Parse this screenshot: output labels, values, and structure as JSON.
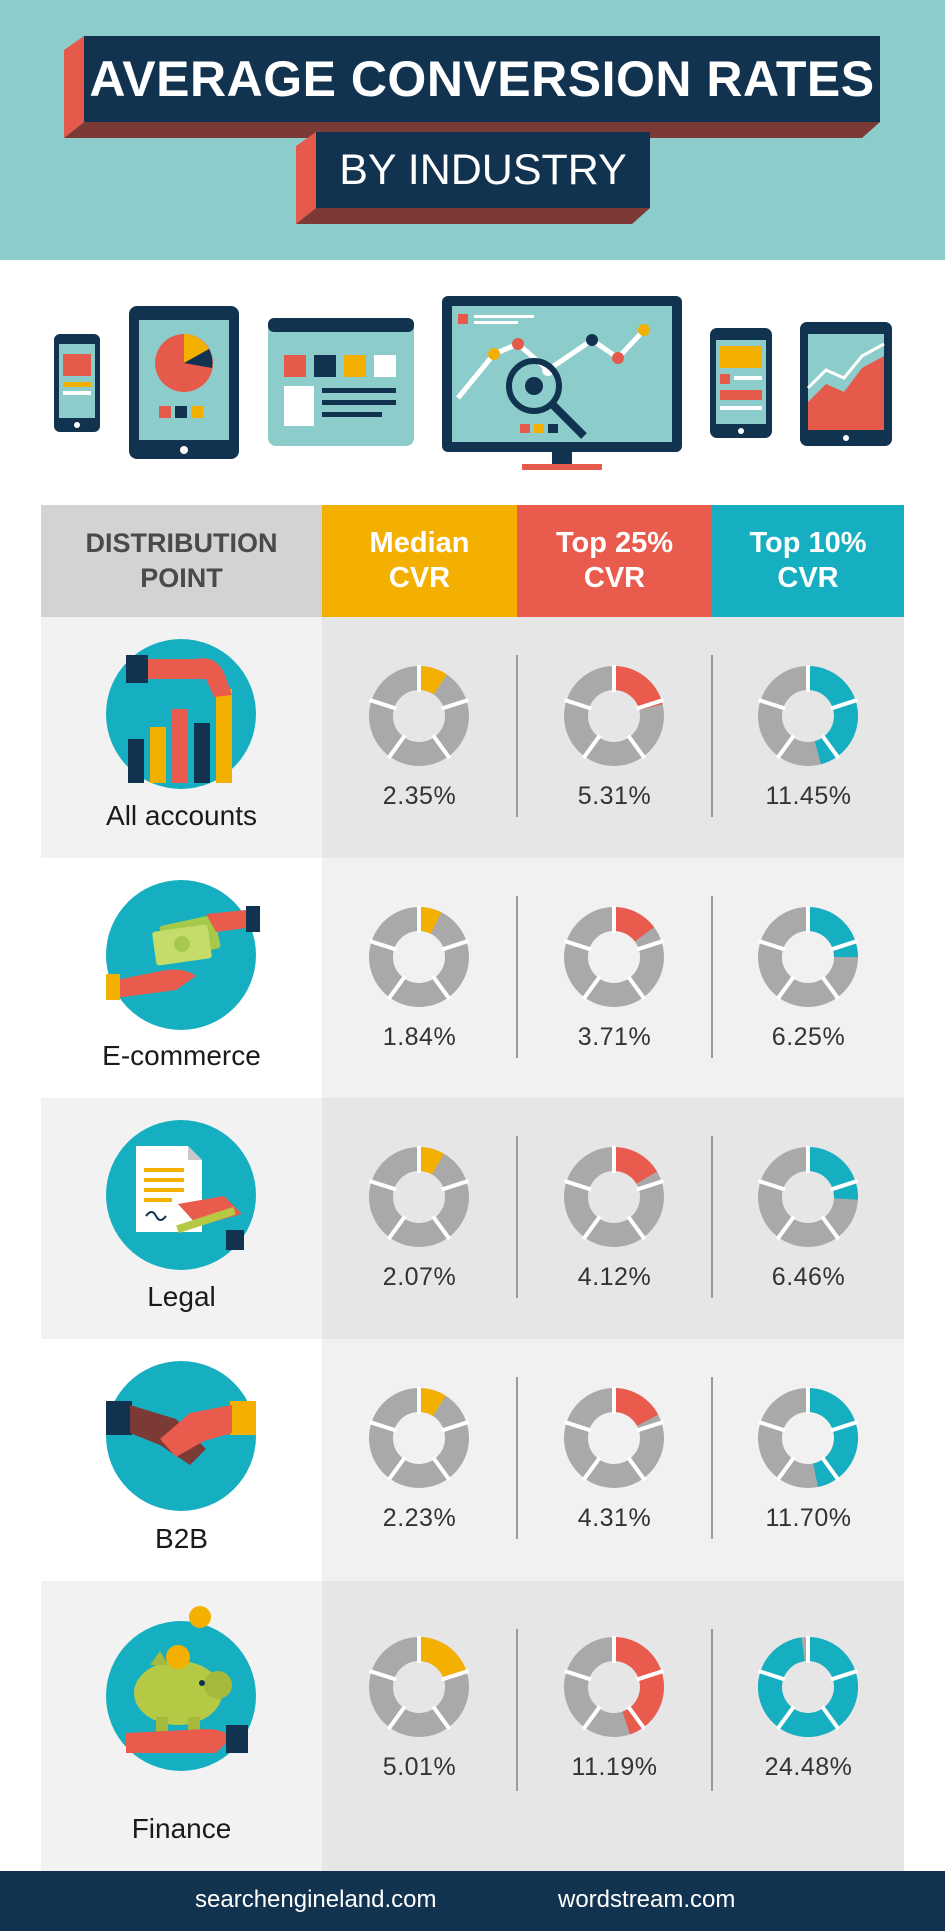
{
  "header": {
    "title": "AVERAGE CONVERSION RATES",
    "subtitle": "BY INDUSTRY"
  },
  "colors": {
    "median": "#f4b000",
    "top25": "#e95b4d",
    "top10": "#16afc1",
    "ring_gray": "#a9a9a9",
    "navy": "#12334f",
    "teal_bg": "#8ccdcc"
  },
  "chart_data": {
    "type": "table",
    "columns": [
      "DISTRIBUTION\nPOINT",
      "Median\nCVR",
      "Top 25%\nCVR",
      "Top 10%\nCVR"
    ],
    "rows": [
      {
        "label": "All accounts",
        "icon": "bar-chart-hand-icon",
        "median": 2.35,
        "top25": 5.31,
        "top10": 11.45,
        "median_text": "2.35%",
        "top25_text": "5.31%",
        "top10_text": "11.45%"
      },
      {
        "label": "E-commerce",
        "icon": "money-exchange-icon",
        "median": 1.84,
        "top25": 3.71,
        "top10": 6.25,
        "median_text": "1.84%",
        "top25_text": "3.71%",
        "top10_text": "6.25%"
      },
      {
        "label": "Legal",
        "icon": "document-signing-icon",
        "median": 2.07,
        "top25": 4.12,
        "top10": 6.46,
        "median_text": "2.07%",
        "top25_text": "4.12%",
        "top10_text": "6.46%"
      },
      {
        "label": "B2B",
        "icon": "handshake-icon",
        "median": 2.23,
        "top25": 4.31,
        "top10": 11.7,
        "median_text": "2.23%",
        "top25_text": "4.31%",
        "top10_text": "11.70%"
      },
      {
        "label": "Finance",
        "icon": "piggy-bank-icon",
        "median": 5.01,
        "top25": 11.19,
        "top10": 24.48,
        "median_text": "5.01%",
        "top25_text": "11.19%",
        "top10_text": "24.48%"
      }
    ],
    "donut_full_scale": 25
  },
  "footer": {
    "link1": "searchengineland.com",
    "link2": "wordstream.com"
  }
}
